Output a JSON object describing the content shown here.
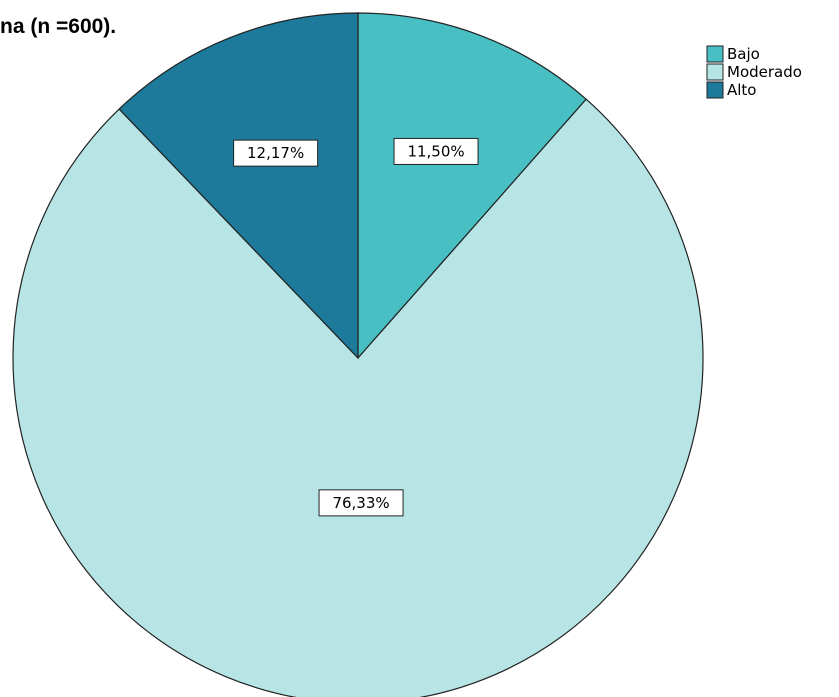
{
  "chart_data": {
    "type": "pie",
    "title": "na (n =600).",
    "start_angle_deg": 0,
    "direction": "clockwise",
    "slices": [
      {
        "label": "Bajo",
        "value": 11.5,
        "display": "11,50%",
        "color": "#48bfc2"
      },
      {
        "label": "Moderado",
        "value": 76.33,
        "display": "76,33%",
        "color": "#b7e5e6"
      },
      {
        "label": "Alto",
        "value": 12.17,
        "display": "12,17%",
        "color": "#1e7a9a"
      }
    ],
    "legend": {
      "position": "top-right",
      "items": [
        "Bajo",
        "Moderado",
        "Alto"
      ]
    }
  }
}
